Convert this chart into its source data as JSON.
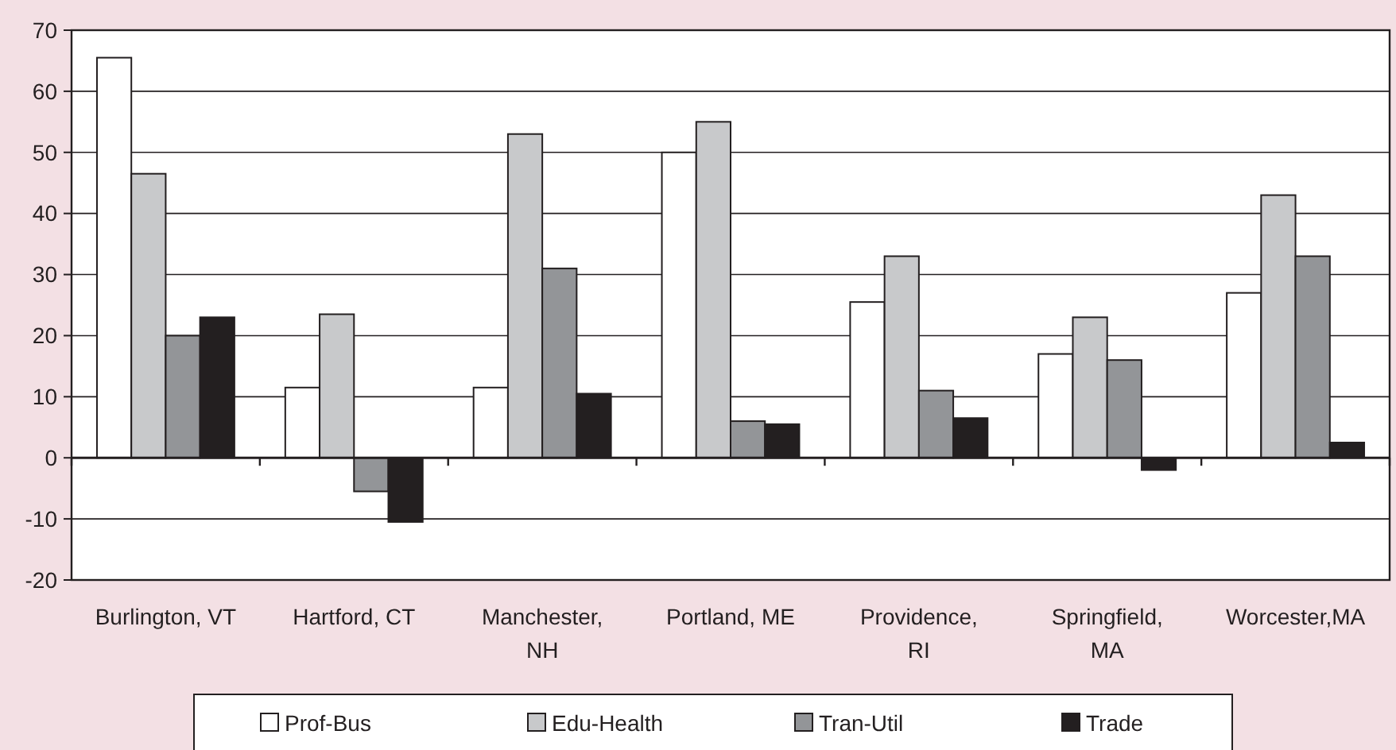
{
  "chart_data": {
    "type": "bar",
    "categories": [
      "Burlington, VT",
      "Hartford, CT",
      "Manchester,\nNH",
      "Portland, ME",
      "Providence,\nRI",
      "Springfield,\nMA",
      "Worcester,MA"
    ],
    "series": [
      {
        "name": "Prof-Bus",
        "color": "#ffffff",
        "values": [
          65.5,
          11.5,
          11.5,
          50,
          25.5,
          17,
          27
        ]
      },
      {
        "name": "Edu-Health",
        "color": "#c8c9cb",
        "values": [
          46.5,
          23.5,
          53,
          55,
          33,
          23,
          43
        ]
      },
      {
        "name": "Tran-Util",
        "color": "#939598",
        "values": [
          20,
          -5.5,
          31,
          6,
          11,
          16,
          33
        ]
      },
      {
        "name": "Trade",
        "color": "#231f20",
        "values": [
          23,
          -10.5,
          10.5,
          5.5,
          6.5,
          -2,
          2.5
        ]
      }
    ],
    "ylim": [
      -20,
      70
    ],
    "yticks": [
      -20,
      -10,
      0,
      10,
      20,
      30,
      40,
      50,
      60,
      70
    ],
    "grid": "y",
    "legend": "bottom"
  }
}
